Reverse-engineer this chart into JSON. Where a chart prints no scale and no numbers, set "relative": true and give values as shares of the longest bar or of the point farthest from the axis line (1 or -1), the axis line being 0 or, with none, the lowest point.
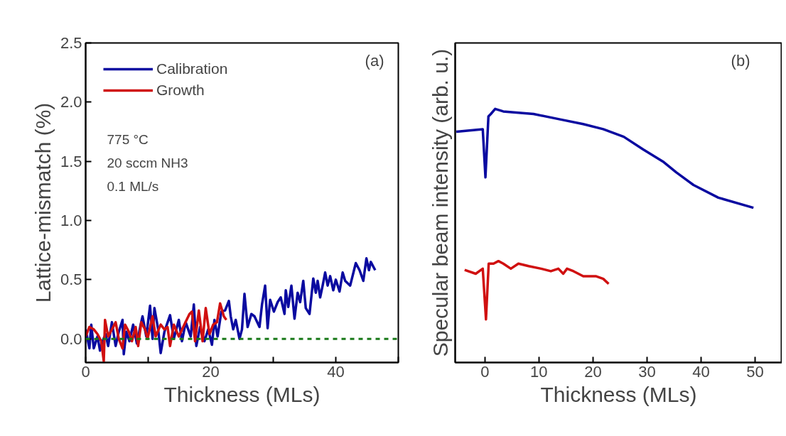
{
  "chart_data": [
    {
      "type": "line",
      "xlabel": "Thickness (MLs)",
      "ylabel": "Lattice-mismatch (%)",
      "xlim": [
        0,
        50
      ],
      "ylim": [
        -0.2,
        2.5
      ],
      "xticks": [
        0,
        {
          "value": 10,
          "label": null
        },
        20,
        {
          "value": 30,
          "label": null
        },
        40,
        {
          "value": 50,
          "label": null
        }
      ],
      "yticks": [
        {
          "value": 0,
          "label": "0.0"
        },
        0.5,
        {
          "value": 1,
          "label": "1.0"
        },
        1.5,
        {
          "value": 2,
          "label": "2.0"
        },
        2.5
      ],
      "legend": "top left",
      "grid": false,
      "line_style": "solid",
      "annotations": [
        "(a)",
        "775 °C",
        "20 sccm NH3",
        "0.1 ML/s"
      ],
      "ref_lines": [
        {
          "axis": "y",
          "value": 0,
          "label": null,
          "color": "#1a7a1a",
          "line_style": "dashed"
        }
      ],
      "series": [
        {
          "name": "Calibration",
          "color": "#0a0aa0",
          "x": [
            0.0,
            0.6,
            0.9,
            1.3,
            1.9,
            2.3,
            2.7,
            3.2,
            3.6,
            4.2,
            4.8,
            5.3,
            5.9,
            6.1,
            6.5,
            7.0,
            7.6,
            8.2,
            8.8,
            9.1,
            9.7,
            10.3,
            10.7,
            11.0,
            11.6,
            12.0,
            12.6,
            13.5,
            14.1,
            14.9,
            15.4,
            16.0,
            16.8,
            17.3,
            17.7,
            18.3,
            19.0,
            19.6,
            20.2,
            20.6,
            21.1,
            21.7,
            22.3,
            22.9,
            23.2,
            23.6,
            24.0,
            24.6,
            25.0,
            25.4,
            25.9,
            26.5,
            27.0,
            27.8,
            28.2,
            28.7,
            29.1,
            29.5,
            30.1,
            30.7,
            31.2,
            31.8,
            32.0,
            32.4,
            32.9,
            33.4,
            33.9,
            34.3,
            34.8,
            35.2,
            35.8,
            36.4,
            36.8,
            37.1,
            37.5,
            37.9,
            38.3,
            38.7,
            39.1,
            39.6,
            40.0,
            40.6,
            41.1,
            41.5,
            42.3,
            43.2,
            43.8,
            44.4,
            44.9,
            45.3,
            45.6,
            46.3
          ],
          "values": [
            0.08,
            -0.08,
            0.12,
            -0.08,
            0.02,
            -0.1,
            -0.02,
            0.04,
            -0.06,
            0.14,
            -0.06,
            0.06,
            0.16,
            -0.13,
            0.06,
            -0.02,
            0.12,
            -0.04,
            0.12,
            0.19,
            0.02,
            0.28,
            0.0,
            0.26,
            0.08,
            -0.12,
            0.06,
            0.2,
            0.0,
            0.16,
            -0.02,
            0.14,
            0.02,
            0.29,
            -0.06,
            0.1,
            -0.02,
            0.08,
            -0.05,
            0.16,
            0.02,
            0.23,
            0.24,
            0.32,
            0.19,
            0.08,
            0.16,
            0.0,
            0.08,
            0.38,
            0.1,
            0.21,
            0.19,
            0.1,
            0.29,
            0.45,
            0.09,
            0.33,
            0.23,
            0.31,
            0.35,
            0.21,
            0.41,
            0.27,
            0.45,
            0.17,
            0.39,
            0.31,
            0.49,
            0.26,
            0.21,
            0.51,
            0.39,
            0.49,
            0.35,
            0.45,
            0.56,
            0.45,
            0.53,
            0.41,
            0.5,
            0.4,
            0.56,
            0.49,
            0.45,
            0.64,
            0.58,
            0.49,
            0.68,
            0.58,
            0.65,
            0.58
          ]
        },
        {
          "name": "Growth",
          "color": "#d01010",
          "x": [
            0.0,
            0.6,
            1.3,
            1.9,
            2.5,
            2.9,
            3.1,
            3.6,
            4.2,
            4.8,
            5.3,
            5.9,
            6.3,
            6.9,
            7.4,
            8.0,
            8.4,
            8.9,
            9.5,
            9.9,
            10.7,
            11.2,
            12.0,
            12.6,
            13.1,
            13.5,
            14.1,
            14.9,
            15.6,
            16.6,
            17.0,
            17.5,
            18.1,
            18.7,
            19.2,
            19.8,
            20.4,
            21.0,
            21.5,
            22.1,
            22.5
          ],
          "values": [
            0.02,
            0.1,
            0.08,
            0.04,
            -0.02,
            -0.19,
            0.16,
            0.02,
            0.08,
            0.14,
            0.0,
            -0.08,
            0.12,
            0.06,
            -0.02,
            0.1,
            -0.06,
            0.14,
            0.08,
            0.0,
            0.19,
            0.02,
            0.12,
            0.08,
            0.1,
            -0.06,
            0.12,
            0.02,
            0.1,
            0.21,
            0.23,
            -0.02,
            0.24,
            -0.02,
            0.26,
            0.04,
            0.12,
            0.14,
            0.3,
            0.19,
            0.16
          ]
        }
      ]
    },
    {
      "type": "line",
      "xlabel": "Thickness (MLs)",
      "ylabel": "Specular beam intensity (arb. u.)",
      "relative": true,
      "xlim": [
        -5.5,
        55
      ],
      "xticks": [
        0,
        10,
        20,
        30,
        40,
        50
      ],
      "tick_labels": "x",
      "grid": false,
      "line_style": "solid",
      "annotations": [
        "(b)"
      ],
      "series": [
        {
          "color": "#0a0aa0",
          "x": [
            -5.3,
            -0.4,
            0.1,
            0.65,
            1.1,
            1.9,
            3.4,
            9.0,
            13.6,
            18.2,
            21.9,
            25.7,
            29.3,
            33.1,
            35.4,
            38.6,
            43.2,
            49.7
          ],
          "values": [
            0.91,
            0.92,
            0.73,
            0.97,
            0.98,
            1.0,
            0.99,
            0.98,
            0.96,
            0.94,
            0.92,
            0.89,
            0.84,
            0.79,
            0.75,
            0.7,
            0.65,
            0.61
          ]
        },
        {
          "color": "#d01010",
          "x": [
            -3.75,
            -1.7,
            -0.4,
            0.2,
            0.7,
            1.6,
            2.5,
            3.4,
            4.8,
            6.2,
            8.1,
            10.4,
            12.2,
            13.6,
            14.5,
            15.2,
            16.4,
            18.2,
            20.6,
            21.9,
            22.9
          ],
          "values": [
            0.365,
            0.35,
            0.37,
            0.17,
            0.39,
            0.39,
            0.4,
            0.39,
            0.37,
            0.39,
            0.38,
            0.37,
            0.36,
            0.37,
            0.35,
            0.37,
            0.36,
            0.34,
            0.34,
            0.33,
            0.31
          ]
        }
      ]
    }
  ]
}
